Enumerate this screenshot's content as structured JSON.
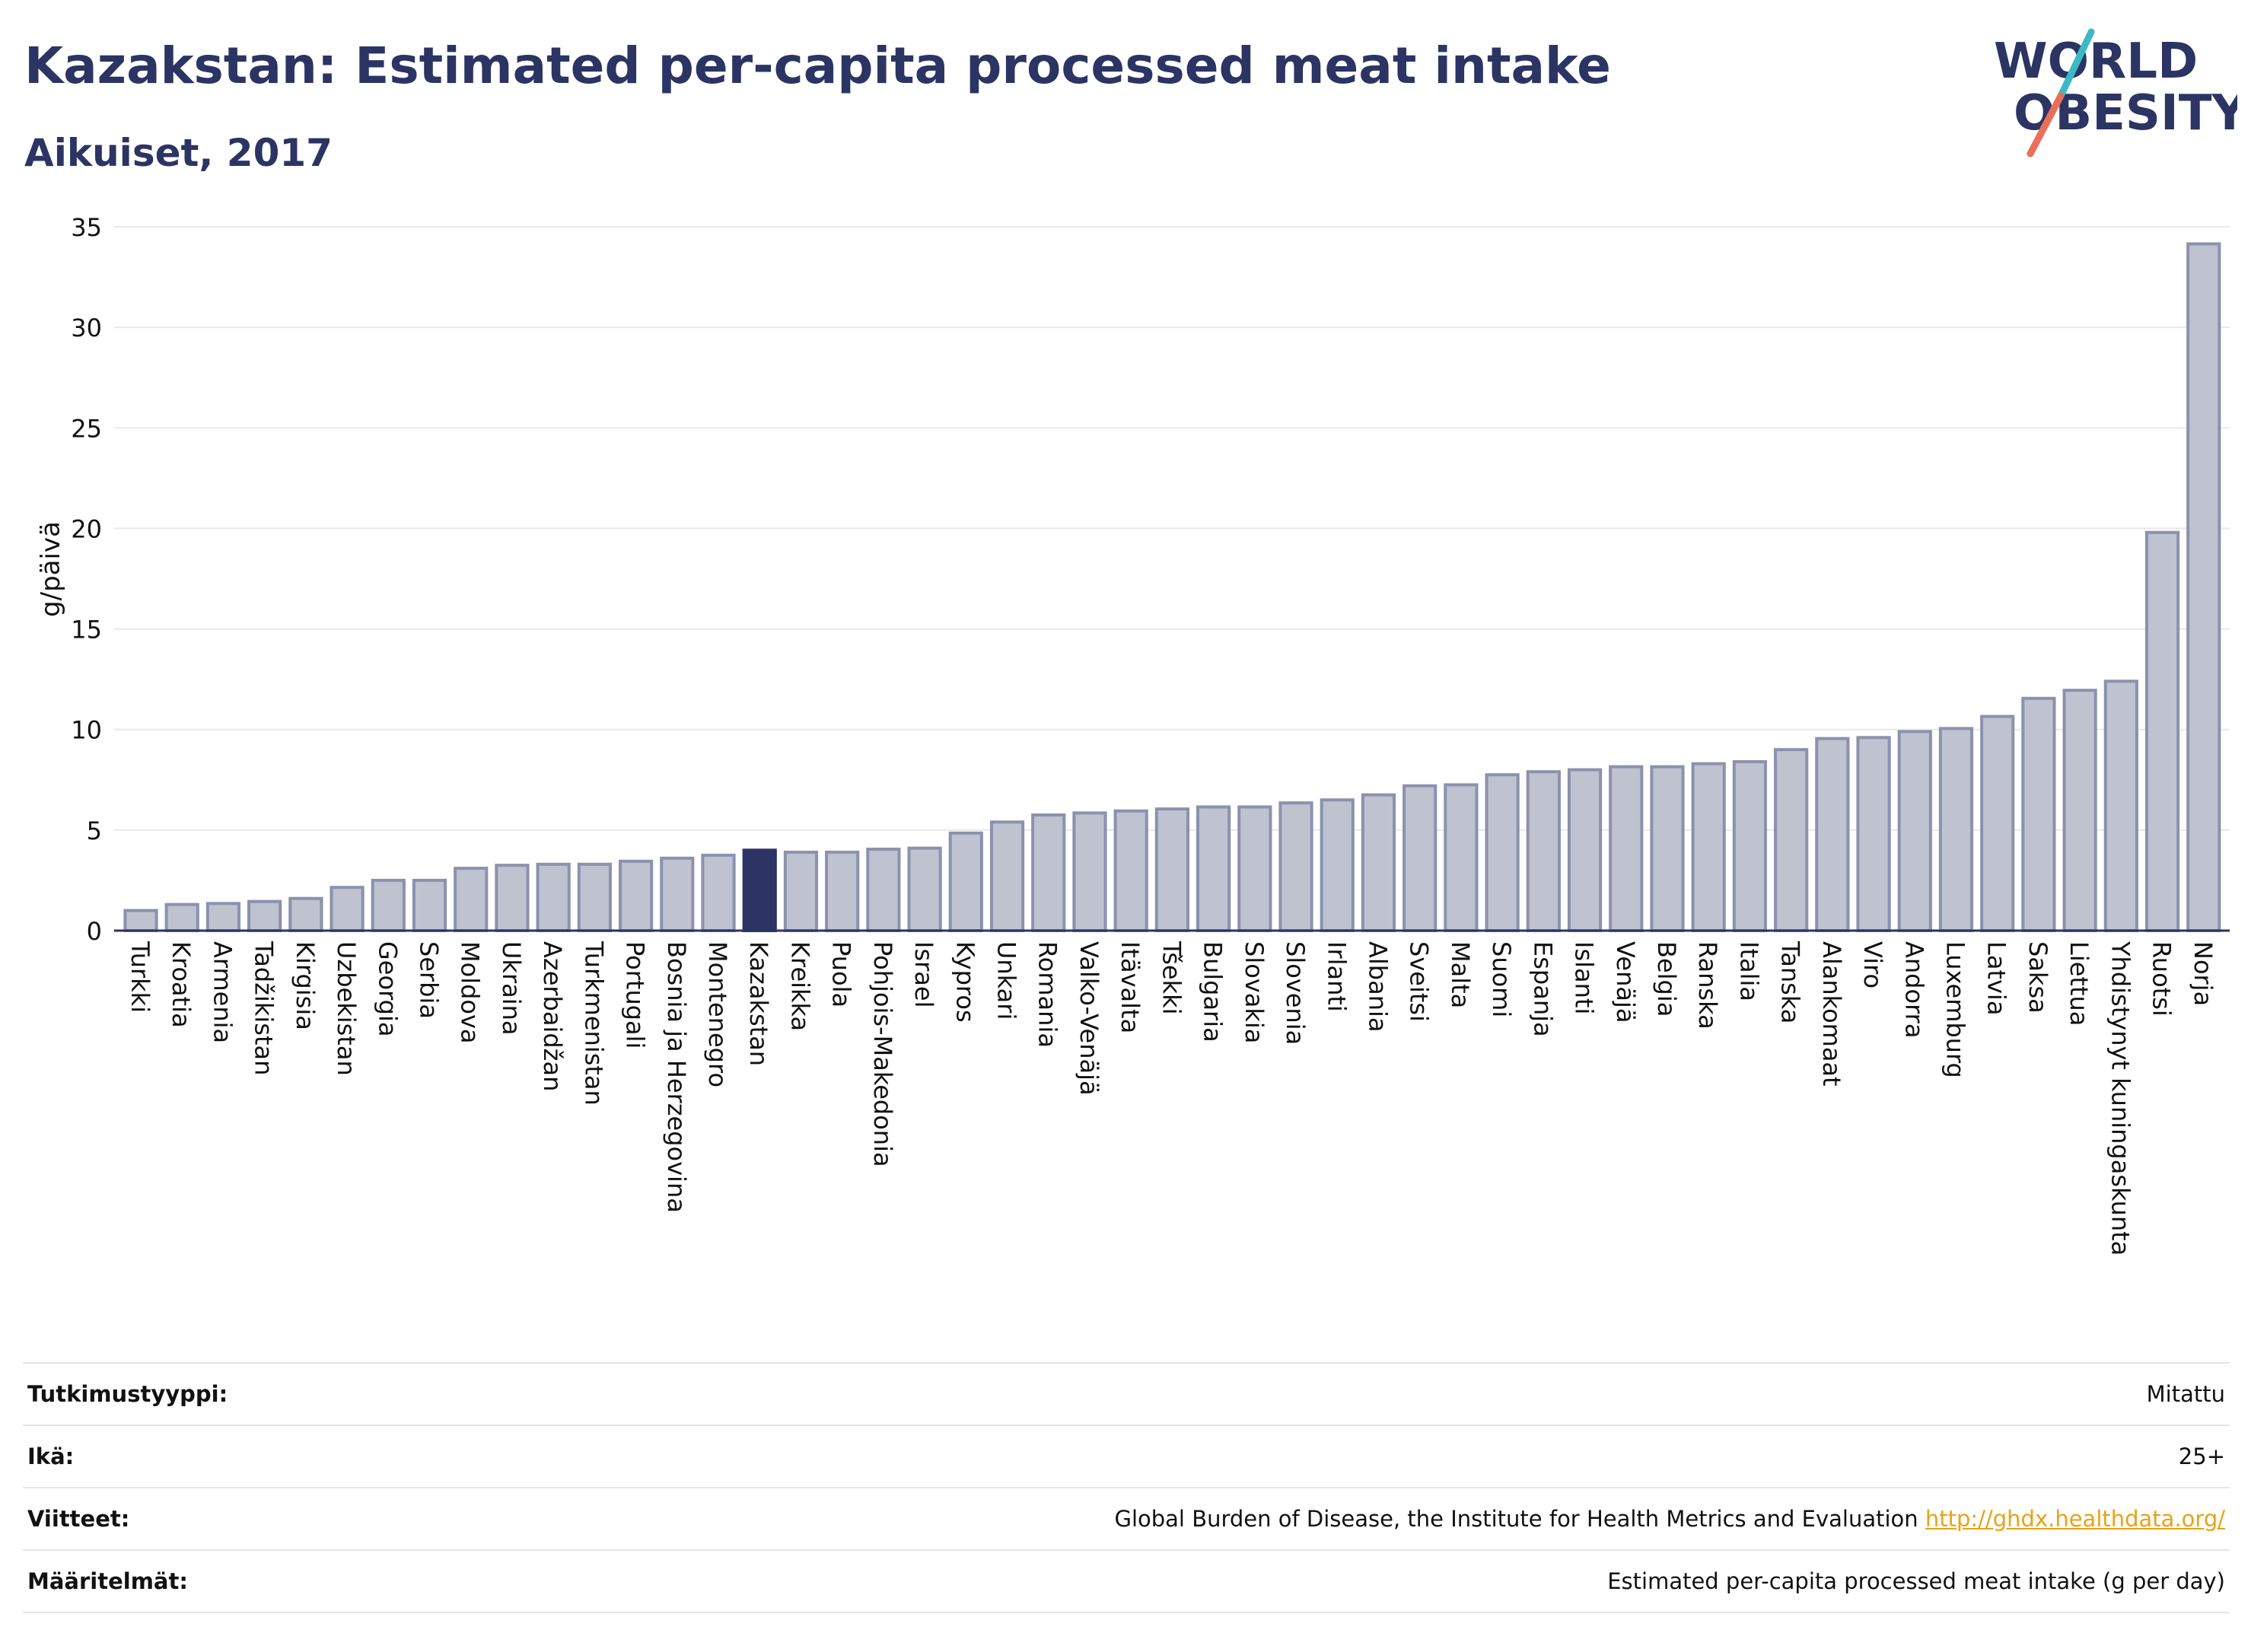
{
  "header": {
    "title": "Kazakstan: Estimated per-capita processed meat intake",
    "subtitle": "Aikuiset, 2017"
  },
  "logo": {
    "line1": "WORLD",
    "line2": "OBESITY",
    "colors": {
      "text": "#2b3463",
      "slash_top": "#3cb9c4",
      "slash_bottom": "#e8705a"
    }
  },
  "chart_data": {
    "type": "bar",
    "title": "Kazakstan: Estimated per-capita processed meat intake",
    "subtitle": "Aikuiset, 2017",
    "ylabel": "g/päivä",
    "xlabel": "",
    "ylim": [
      0,
      35
    ],
    "yticks": [
      0,
      5,
      10,
      15,
      20,
      25,
      30,
      35
    ],
    "grid": true,
    "highlight": "Kazakstan",
    "colors": {
      "bar": "#bfc2cf",
      "bar_edge": "#8c91ad",
      "highlight": "#2b3463"
    },
    "categories": [
      "Turkki",
      "Kroatia",
      "Armenia",
      "Tadžikistan",
      "Kirgisia",
      "Uzbekistan",
      "Georgia",
      "Serbia",
      "Moldova",
      "Ukraina",
      "Azerbaidžan",
      "Turkmenistan",
      "Portugali",
      "Bosnia ja Herzegovina",
      "Montenegro",
      "Kazakstan",
      "Kreikka",
      "Puola",
      "Pohjois-Makedonia",
      "Israel",
      "Kypros",
      "Unkari",
      "Romania",
      "Valko-Venäjä",
      "Itävalta",
      "Tšekki",
      "Bulgaria",
      "Slovakia",
      "Slovenia",
      "Irlanti",
      "Albania",
      "Sveitsi",
      "Malta",
      "Suomi",
      "Espanja",
      "Islanti",
      "Venäjä",
      "Belgia",
      "Ranska",
      "Italia",
      "Tanska",
      "Alankomaat",
      "Viro",
      "Andorra",
      "Luxemburg",
      "Latvia",
      "Saksa",
      "Liettua",
      "Yhdistynyt kuningaskunta",
      "Ruotsi",
      "Norja"
    ],
    "values": [
      1.0,
      1.3,
      1.35,
      1.45,
      1.6,
      2.15,
      2.5,
      2.5,
      3.1,
      3.25,
      3.3,
      3.3,
      3.45,
      3.6,
      3.75,
      4.0,
      3.9,
      3.9,
      4.05,
      4.1,
      4.85,
      5.4,
      5.75,
      5.85,
      5.95,
      6.05,
      6.15,
      6.15,
      6.35,
      6.5,
      6.75,
      7.2,
      7.25,
      7.75,
      7.9,
      8.0,
      8.15,
      8.15,
      8.3,
      8.4,
      9.0,
      9.55,
      9.6,
      9.9,
      10.05,
      10.65,
      11.55,
      11.95,
      12.4,
      19.8,
      34.15
    ]
  },
  "footer": {
    "rows": [
      {
        "key": "Tutkimustyyppi:",
        "value": "Mitattu"
      },
      {
        "key": "Ikä:",
        "value": "25+"
      },
      {
        "key": "Viitteet:",
        "value": "Global Burden of Disease, the Institute for Health Metrics and Evaluation",
        "link": "http://ghdx.healthdata.org/"
      },
      {
        "key": "Määritelmät:",
        "value": "Estimated per-capita processed meat intake (g per day)"
      }
    ]
  }
}
